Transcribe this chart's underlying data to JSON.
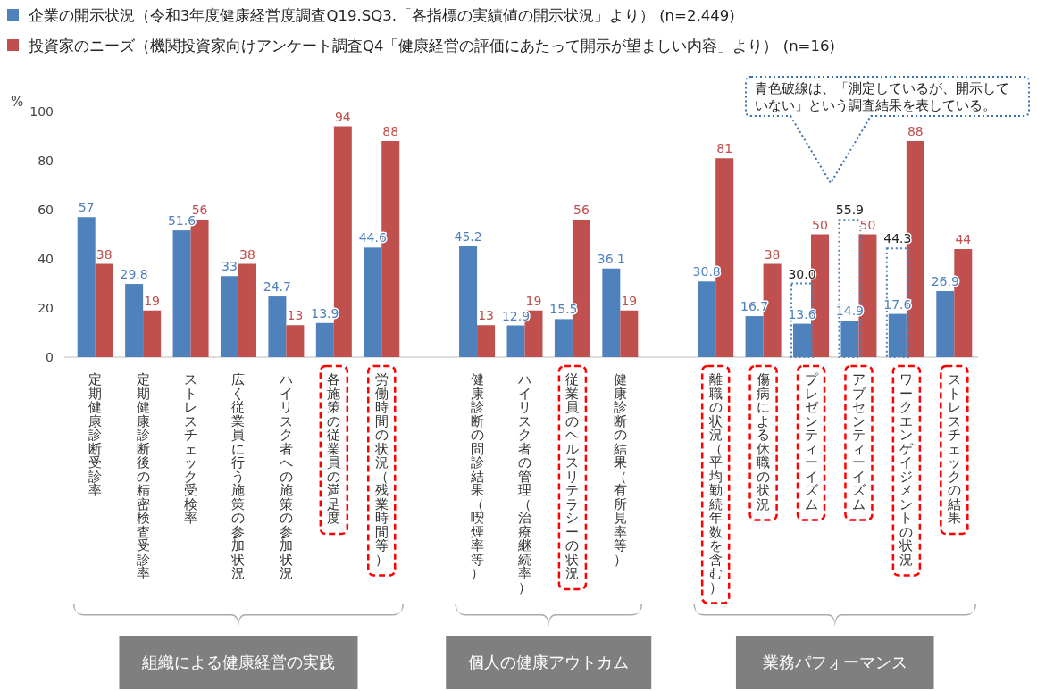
{
  "chart_data": {
    "type": "bar",
    "ylabel": "%",
    "ylim": [
      0,
      100
    ],
    "yticks": [
      0,
      20,
      40,
      60,
      80,
      100
    ],
    "legend": "top left",
    "categories": [
      "定期健康診断受診率",
      "定期健康診断後の精密検査受診率",
      "ストレスチェック受検率",
      "広く従業員に行う施策の参加状況",
      "ハイリスク者への施策の参加状況",
      "各施策の従業員の満足度",
      "労働時間の状況（残業時間等）",
      null,
      "健康診断の問診結果（喫煙率等）",
      "ハイリスク者の管理（治療継続率）",
      "従業員のヘルスリテラシーの状況",
      "健康診断の結果（有所見率等）",
      null,
      "離職の状況（平均勤続年数を含む）",
      "傷病による休職の状況",
      "プレゼンティーイズム",
      "アブセンティーイズム",
      "ワークエンゲイジメントの状況",
      "ストレスチェックの結果"
    ],
    "series": [
      {
        "name": "企業の開示状況（令和3年度健康経営度調査Q19.SQ3.「各指標の実績値の開示状況」より） (n=2,449)",
        "color": "#4f81bd",
        "values": [
          57,
          29.8,
          51.6,
          33,
          24.7,
          13.9,
          44.6,
          null,
          45.2,
          12.9,
          15.5,
          36.1,
          null,
          30.8,
          16.7,
          13.6,
          14.9,
          17.6,
          26.9
        ],
        "value_labels": [
          "57",
          "29.8",
          "51.6",
          "33",
          "24.7",
          "13.9",
          "44.6",
          null,
          "45.2",
          "12.9",
          "15.5",
          "36.1",
          null,
          "30.8",
          "16.7",
          "13.6",
          "14.9",
          "17.6",
          "26.9"
        ]
      },
      {
        "name": "投資家のニーズ（機関投資家向けアンケート調査Q4「健康経営の評価にあたって開示が望ましい内容」より） (n=16)",
        "color": "#c0504d",
        "values": [
          38,
          19,
          56,
          38,
          13,
          94,
          88,
          null,
          13,
          19,
          56,
          19,
          null,
          81,
          38,
          50,
          50,
          88,
          44
        ],
        "value_labels": [
          "38",
          "19",
          "56",
          "38",
          "13",
          "94",
          "88",
          null,
          "13",
          "19",
          "56",
          "19",
          null,
          "81",
          "38",
          "50",
          "50",
          "88",
          "44"
        ]
      },
      {
        "color": "#4f81bd",
        "line_style": "dotted",
        "values": [
          null,
          null,
          null,
          null,
          null,
          null,
          null,
          null,
          null,
          null,
          null,
          null,
          null,
          null,
          null,
          30.0,
          55.9,
          44.3,
          null
        ],
        "value_labels": [
          null,
          null,
          null,
          null,
          null,
          null,
          null,
          null,
          null,
          null,
          null,
          null,
          null,
          null,
          null,
          "30.0",
          "55.9",
          "44.3",
          null
        ]
      }
    ],
    "annotations": [
      "青色破線は、「測定しているが、開示していない」という調査結果を表している。",
      "組織による健康経営の実践",
      "個人の健康アウトカム",
      "業務パフォーマンス"
    ]
  }
}
